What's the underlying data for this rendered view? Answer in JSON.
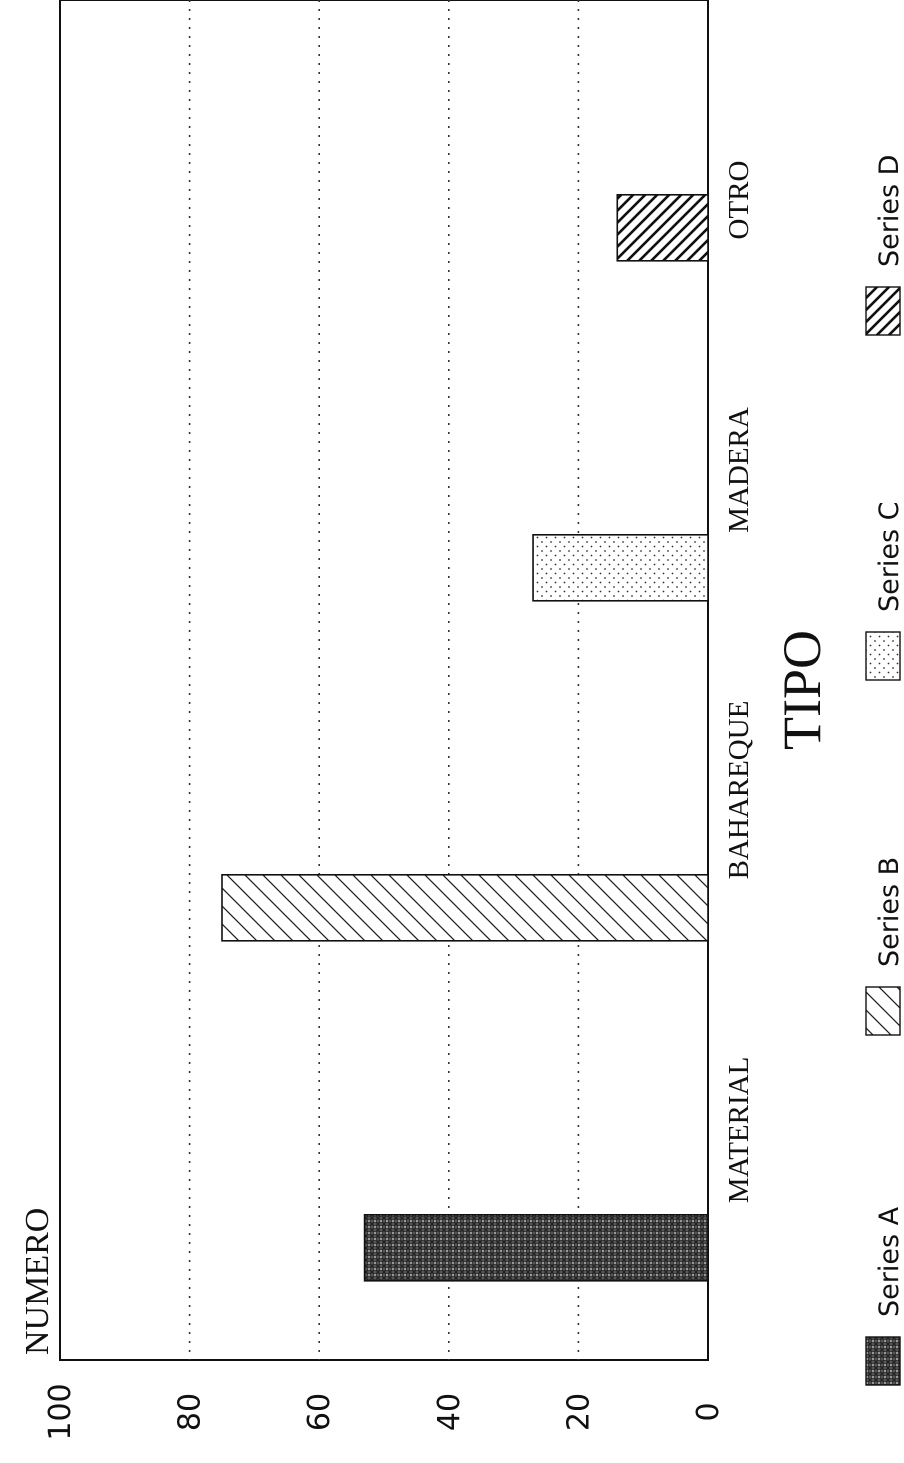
{
  "chart_data": {
    "type": "bar",
    "title": "",
    "xlabel": "TIPO",
    "ylabel": "NUMERO",
    "categories": [
      "MATERIAL",
      "BAHAREQUE",
      "MADERA",
      "OTRO"
    ],
    "series": [
      {
        "name": "Series A",
        "category": "MATERIAL",
        "value": 53,
        "pattern": "crosshatch-dark"
      },
      {
        "name": "Series B",
        "category": "BAHAREQUE",
        "value": 75,
        "pattern": "diagonal-light"
      },
      {
        "name": "Series C",
        "category": "MADERA",
        "value": 27,
        "pattern": "dots"
      },
      {
        "name": "Series D",
        "category": "OTRO",
        "value": 14,
        "pattern": "diagonal-dense"
      }
    ],
    "ylim": [
      0,
      100
    ],
    "yticks": [
      "0",
      "20",
      "40",
      "60",
      "80",
      "100"
    ],
    "grid": true,
    "legend_placement": "bottom",
    "orientation": "rotated-90-ccw"
  }
}
